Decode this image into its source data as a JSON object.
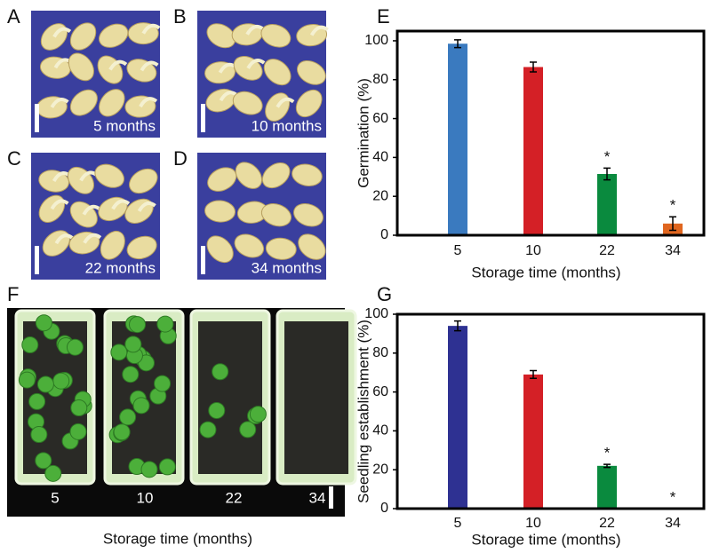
{
  "photos": [
    {
      "letter": "A",
      "label": "5 months"
    },
    {
      "letter": "B",
      "label": "10 months"
    },
    {
      "letter": "C",
      "label": "22 months"
    },
    {
      "letter": "D",
      "label": "34 months"
    }
  ],
  "seedling_photo": {
    "letter": "F",
    "labels": [
      "5",
      "10",
      "22",
      "34"
    ],
    "xlabel": "Storage time (months)"
  },
  "chart_data": [
    {
      "type": "bar",
      "letter": "E",
      "xlabel": "Storage time (months)",
      "ylabel": "Germination (%)",
      "categories": [
        "5",
        "10",
        "22",
        "34"
      ],
      "values": [
        98.5,
        86.5,
        31.5,
        6
      ],
      "errors": [
        2,
        2.5,
        3,
        3.5
      ],
      "annotations": [
        null,
        null,
        "*",
        "*"
      ],
      "colors": [
        "#3a7abf",
        "#d42026",
        "#0a8a3e",
        "#e0661f"
      ],
      "ylim": [
        0,
        105
      ],
      "yticks": [
        0,
        20,
        40,
        60,
        80,
        100
      ]
    },
    {
      "type": "bar",
      "letter": "G",
      "xlabel": "Storage time (months)",
      "ylabel": "Seedling establishment (%)",
      "categories": [
        "5",
        "10",
        "22",
        "34"
      ],
      "values": [
        94,
        69,
        22,
        0
      ],
      "errors": [
        2.5,
        2,
        0.8,
        0
      ],
      "annotations": [
        null,
        null,
        "*",
        "*"
      ],
      "colors": [
        "#2e3192",
        "#d42026",
        "#0a8a3e",
        "#0a8a3e"
      ],
      "ylim": [
        0,
        100
      ],
      "yticks": [
        0,
        20,
        40,
        60,
        80,
        100
      ]
    }
  ]
}
